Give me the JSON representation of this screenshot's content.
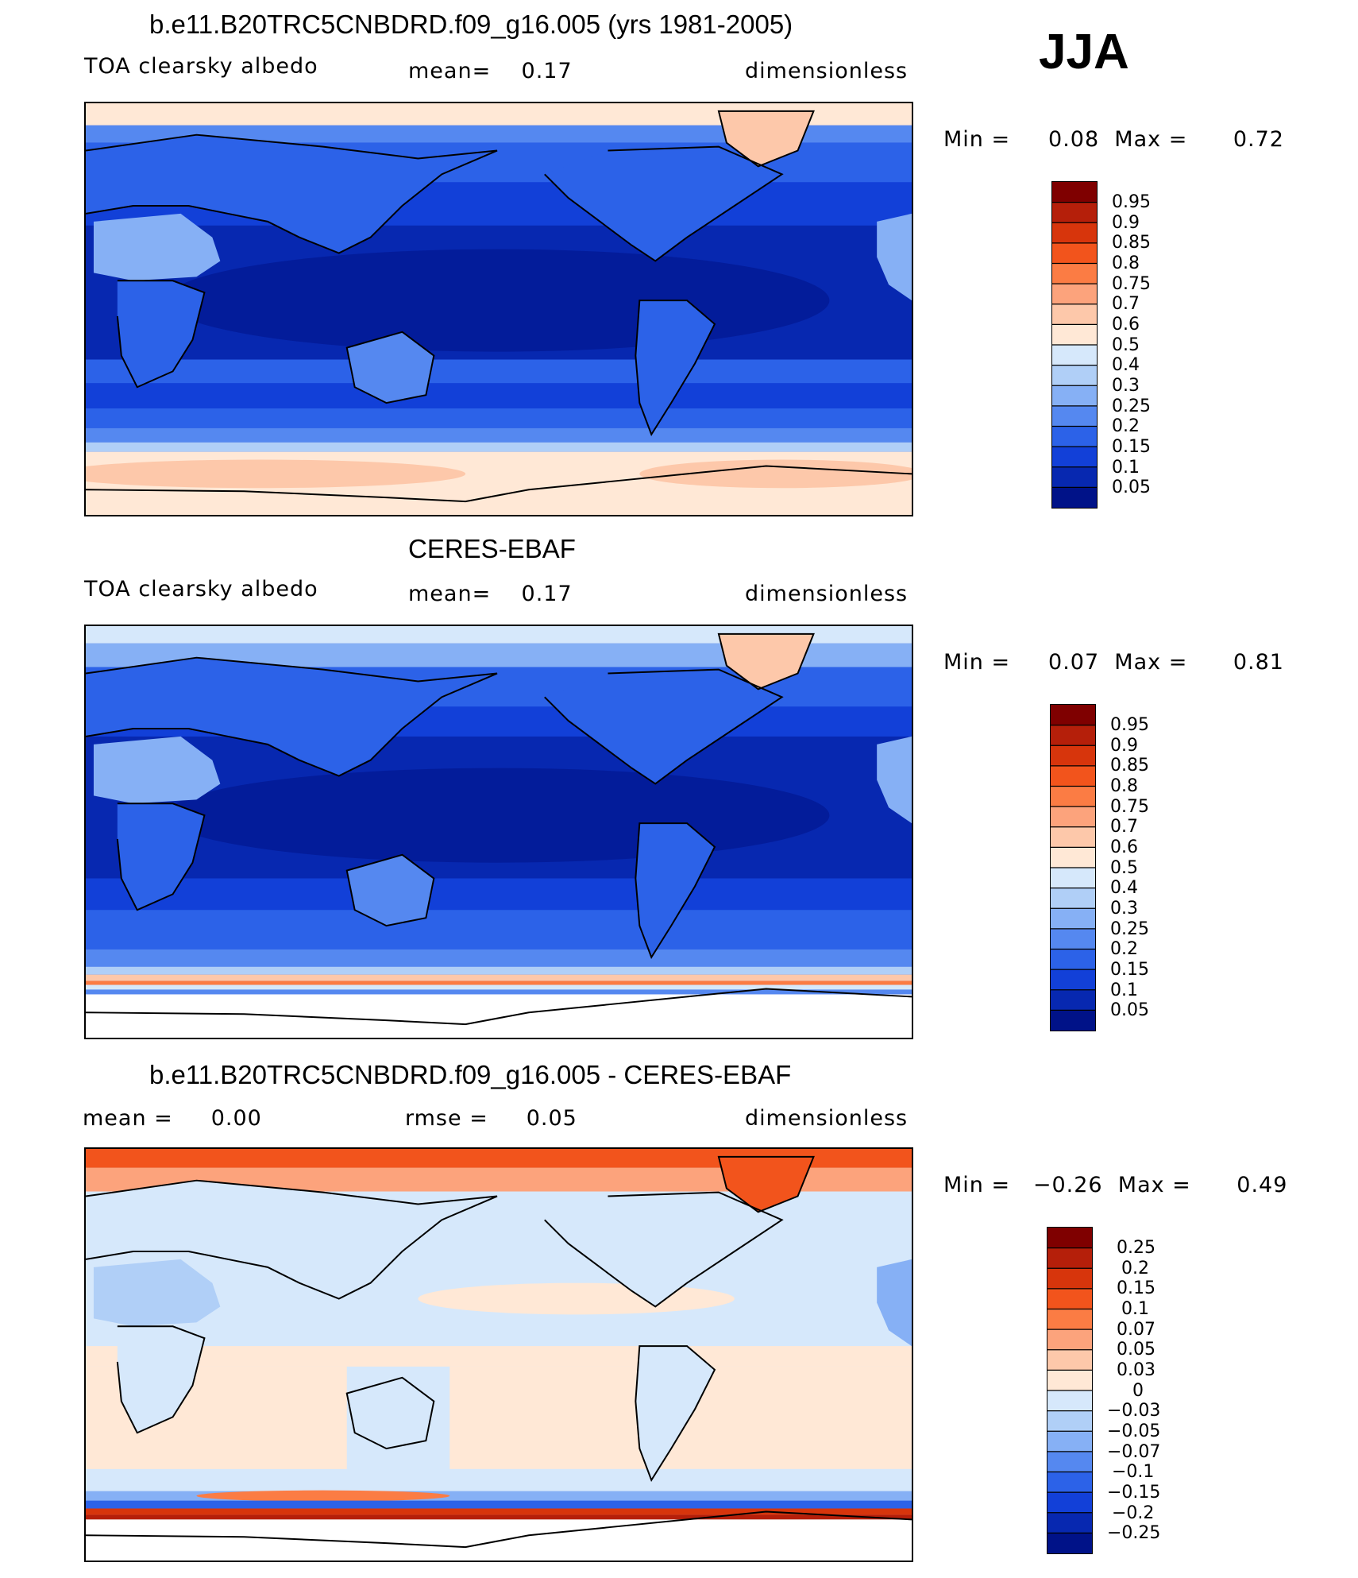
{
  "season": "JJA",
  "panels": [
    {
      "title": "b.e11.B20TRC5CNBDRD.f09_g16.005 (yrs 1981-2005)",
      "left": "TOA clearsky albedo",
      "mid": "mean=    0.17",
      "right": "dimensionless",
      "minmax": "Min =     0.08  Max =      0.72"
    },
    {
      "title": "CERES-EBAF",
      "left": "TOA clearsky albedo",
      "mid": "mean=    0.17",
      "right": "dimensionless",
      "minmax": "Min =     0.07  Max =      0.81"
    },
    {
      "title": "b.e11.B20TRC5CNBDRD.f09_g16.005 - CERES-EBAF",
      "left": "mean =     0.00",
      "mid": "rmse =     0.05",
      "right": "dimensionless",
      "minmax": "Min =   −0.26  Max =      0.49"
    }
  ],
  "colorbar_abs": {
    "labels": [
      "0.95",
      "0.9",
      "0.85",
      "0.8",
      "0.75",
      "0.7",
      "0.6",
      "0.5",
      "0.4",
      "0.3",
      "0.25",
      "0.2",
      "0.15",
      "0.1",
      "0.05"
    ],
    "colors": [
      "#7f0000",
      "#b51f0a",
      "#d7350c",
      "#f2541c",
      "#fb7c44",
      "#fca37c",
      "#fdc8aa",
      "#ffe8d6",
      "#d6e8fb",
      "#b0cff7",
      "#86b0f5",
      "#5588f0",
      "#2c62e8",
      "#1240d8",
      "#0728b0",
      "#001288"
    ]
  },
  "colorbar_diff": {
    "labels": [
      "0.25",
      "0.2",
      "0.15",
      "0.1",
      "0.07",
      "0.05",
      "0.03",
      "0",
      "−0.03",
      "−0.05",
      "−0.07",
      "−0.1",
      "−0.15",
      "−0.2",
      "−0.25"
    ],
    "colors": [
      "#7f0000",
      "#b51f0a",
      "#d7350c",
      "#f2541c",
      "#fb7c44",
      "#fca37c",
      "#fdc8aa",
      "#ffe8d6",
      "#d6e8fb",
      "#b0cff7",
      "#86b0f5",
      "#5588f0",
      "#2c62e8",
      "#1240d8",
      "#0728b0",
      "#001288"
    ]
  }
}
